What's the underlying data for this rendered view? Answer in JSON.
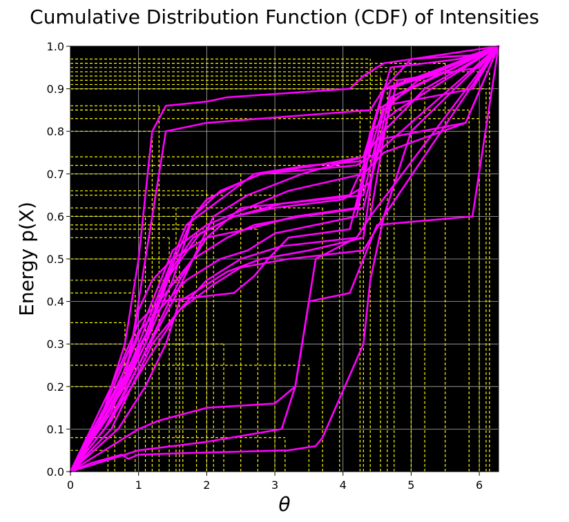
{
  "chart_data": {
    "type": "line",
    "title": "Cumulative Distribution Function (CDF) of Intensities",
    "xlabel": "θ",
    "ylabel": "Energy p(X)",
    "xlim": [
      0,
      6.283
    ],
    "ylim": [
      0,
      1
    ],
    "xticks": [
      0,
      1,
      2,
      3,
      4,
      5,
      6
    ],
    "yticks": [
      0.0,
      0.1,
      0.2,
      0.3,
      0.4,
      0.5,
      0.6,
      0.7,
      0.8,
      0.9,
      1.0
    ],
    "grid": true,
    "background_color": "#000000",
    "line_color": "#ff00ff",
    "guide_color": "#ffff00",
    "series": [
      {
        "x": [
          0,
          0.3,
          0.75,
          0.85,
          1.0,
          2.0,
          3.2,
          3.6,
          3.7,
          4.3,
          4.4,
          4.6,
          6.283
        ],
        "y": [
          0,
          0.02,
          0.04,
          0.03,
          0.04,
          0.045,
          0.05,
          0.06,
          0.08,
          0.3,
          0.45,
          0.6,
          1.0
        ]
      },
      {
        "x": [
          0,
          0.4,
          0.8,
          1.0,
          2.0,
          3.1,
          3.3,
          3.5,
          4.1,
          4.3,
          4.5,
          5.9,
          6.283
        ],
        "y": [
          0,
          0.02,
          0.04,
          0.05,
          0.07,
          0.1,
          0.2,
          0.4,
          0.42,
          0.5,
          0.58,
          0.6,
          1.0
        ]
      },
      {
        "x": [
          0,
          0.5,
          1.0,
          1.3,
          2.0,
          3.0,
          3.3,
          3.6,
          4.2,
          4.4,
          6.283
        ],
        "y": [
          0,
          0.05,
          0.1,
          0.12,
          0.15,
          0.16,
          0.2,
          0.5,
          0.55,
          0.6,
          1.0
        ]
      },
      {
        "x": [
          0,
          0.3,
          0.6,
          1.0,
          1.3,
          2.4,
          2.7,
          2.9,
          3.2,
          4.1,
          4.3,
          4.6,
          5.8,
          6.283
        ],
        "y": [
          0,
          0.1,
          0.2,
          0.35,
          0.4,
          0.42,
          0.46,
          0.5,
          0.55,
          0.57,
          0.7,
          0.75,
          0.82,
          1.0
        ]
      },
      {
        "x": [
          0,
          0.4,
          0.8,
          1.0,
          1.2,
          1.4,
          2.0,
          2.3,
          4.1,
          4.3,
          4.6,
          6.283
        ],
        "y": [
          0,
          0.1,
          0.3,
          0.5,
          0.8,
          0.86,
          0.87,
          0.88,
          0.9,
          0.93,
          0.96,
          1.0
        ]
      },
      {
        "x": [
          0,
          0.5,
          0.9,
          1.2,
          1.4,
          2.0,
          4.4,
          4.6,
          5.0,
          6.0,
          6.283
        ],
        "y": [
          0,
          0.15,
          0.3,
          0.6,
          0.8,
          0.82,
          0.85,
          0.9,
          0.97,
          0.98,
          1.0
        ]
      },
      {
        "x": [
          0,
          0.4,
          0.8,
          1.1,
          1.4,
          1.8,
          2.0,
          2.5,
          2.8,
          4.2,
          4.5,
          4.7,
          5.5,
          6.283
        ],
        "y": [
          0,
          0.1,
          0.2,
          0.3,
          0.45,
          0.6,
          0.64,
          0.68,
          0.7,
          0.72,
          0.75,
          0.9,
          0.95,
          1.0
        ]
      },
      {
        "x": [
          0,
          0.5,
          1.0,
          1.5,
          1.8,
          2.1,
          2.6,
          3.4,
          4.3,
          4.6,
          5.2,
          6.283
        ],
        "y": [
          0,
          0.1,
          0.25,
          0.4,
          0.5,
          0.6,
          0.65,
          0.7,
          0.74,
          0.8,
          0.9,
          1.0
        ]
      },
      {
        "x": [
          0,
          0.6,
          1.0,
          1.6,
          2.0,
          2.5,
          4.3,
          4.6,
          5.1,
          6.283
        ],
        "y": [
          0,
          0.12,
          0.25,
          0.45,
          0.55,
          0.62,
          0.65,
          0.85,
          0.92,
          1.0
        ]
      },
      {
        "x": [
          0,
          0.3,
          0.7,
          1.0,
          1.3,
          1.7,
          2.2,
          2.6,
          3.0,
          3.6,
          4.2,
          4.5,
          5.0,
          6.283
        ],
        "y": [
          0,
          0.08,
          0.2,
          0.33,
          0.38,
          0.45,
          0.5,
          0.52,
          0.56,
          0.58,
          0.6,
          0.85,
          0.9,
          1.0
        ]
      },
      {
        "x": [
          0,
          0.7,
          1.1,
          1.4,
          1.6,
          1.9,
          2.3,
          2.8,
          3.5,
          4.3,
          4.5,
          5.8,
          6.283
        ],
        "y": [
          0,
          0.1,
          0.2,
          0.3,
          0.4,
          0.43,
          0.47,
          0.5,
          0.52,
          0.55,
          0.78,
          0.82,
          1.0
        ]
      },
      {
        "x": [
          0,
          0.5,
          0.9,
          1.2,
          1.5,
          1.8,
          2.4,
          3.1,
          4.1,
          4.3,
          4.6,
          5.5,
          6.283
        ],
        "y": [
          0,
          0.15,
          0.25,
          0.35,
          0.48,
          0.55,
          0.6,
          0.63,
          0.65,
          0.72,
          0.9,
          0.94,
          1.0
        ]
      },
      {
        "x": [
          0,
          0.4,
          0.8,
          1.0,
          1.2,
          1.5,
          2.0,
          2.6,
          3.3,
          4.2,
          4.4,
          4.8,
          6.283
        ],
        "y": [
          0,
          0.1,
          0.22,
          0.38,
          0.45,
          0.5,
          0.55,
          0.57,
          0.6,
          0.62,
          0.8,
          0.85,
          1.0
        ]
      },
      {
        "x": [
          0,
          0.6,
          1.0,
          1.3,
          1.7,
          2.2,
          2.7,
          3.5,
          4.3,
          4.7,
          5.7,
          6.283
        ],
        "y": [
          0,
          0.14,
          0.3,
          0.42,
          0.58,
          0.64,
          0.7,
          0.72,
          0.73,
          0.95,
          0.97,
          1.0
        ]
      },
      {
        "x": [
          0,
          0.3,
          0.6,
          0.9,
          1.2,
          1.6,
          2.1,
          2.5,
          3.2,
          4.3,
          4.6,
          5.0,
          6.283
        ],
        "y": [
          0,
          0.05,
          0.1,
          0.2,
          0.3,
          0.38,
          0.44,
          0.48,
          0.5,
          0.52,
          0.6,
          0.8,
          1.0
        ]
      },
      {
        "x": [
          0,
          0.5,
          0.9,
          1.1,
          1.4,
          1.9,
          2.4,
          3.0,
          4.0,
          4.4,
          4.8,
          6.0,
          6.283
        ],
        "y": [
          0,
          0.12,
          0.26,
          0.32,
          0.45,
          0.56,
          0.6,
          0.62,
          0.64,
          0.68,
          0.92,
          0.95,
          1.0
        ]
      },
      {
        "x": [
          0,
          0.4,
          0.7,
          1.0,
          1.3,
          1.8,
          2.3,
          2.7,
          3.4,
          4.3,
          4.5,
          6.283
        ],
        "y": [
          0,
          0.1,
          0.18,
          0.28,
          0.4,
          0.5,
          0.55,
          0.58,
          0.6,
          0.62,
          0.75,
          1.0
        ]
      },
      {
        "x": [
          0,
          0.6,
          1.1,
          1.5,
          1.8,
          2.2,
          2.8,
          3.6,
          4.3,
          4.6,
          5.3,
          6.283
        ],
        "y": [
          0,
          0.15,
          0.3,
          0.45,
          0.6,
          0.66,
          0.7,
          0.72,
          0.74,
          0.9,
          0.94,
          1.0
        ]
      },
      {
        "x": [
          0,
          0.5,
          0.9,
          1.2,
          1.6,
          2.0,
          2.5,
          3.1,
          4.2,
          4.4,
          4.7,
          6.283
        ],
        "y": [
          0,
          0.1,
          0.2,
          0.28,
          0.38,
          0.45,
          0.5,
          0.53,
          0.55,
          0.6,
          0.88,
          1.0
        ]
      },
      {
        "x": [
          0,
          0.4,
          0.8,
          1.2,
          1.5,
          2.0,
          2.6,
          3.2,
          4.3,
          4.6,
          5.9,
          6.283
        ],
        "y": [
          0,
          0.11,
          0.24,
          0.4,
          0.52,
          0.58,
          0.62,
          0.66,
          0.7,
          0.86,
          0.9,
          1.0
        ]
      }
    ],
    "guides": [
      {
        "x": 0.55,
        "y": 0.05
      },
      {
        "x": 0.65,
        "y": 0.2
      },
      {
        "x": 0.8,
        "y": 0.35
      },
      {
        "x": 0.95,
        "y": 0.42
      },
      {
        "x": 1.1,
        "y": 0.6
      },
      {
        "x": 1.2,
        "y": 0.8
      },
      {
        "x": 1.3,
        "y": 0.86
      },
      {
        "x": 1.45,
        "y": 0.55
      },
      {
        "x": 1.55,
        "y": 0.62
      },
      {
        "x": 1.6,
        "y": 0.5
      },
      {
        "x": 1.65,
        "y": 0.45
      },
      {
        "x": 1.85,
        "y": 0.58
      },
      {
        "x": 2.0,
        "y": 0.66
      },
      {
        "x": 2.1,
        "y": 0.6
      },
      {
        "x": 2.25,
        "y": 0.3
      },
      {
        "x": 2.5,
        "y": 0.7
      },
      {
        "x": 2.75,
        "y": 0.57
      },
      {
        "x": 3.0,
        "y": 0.65
      },
      {
        "x": 3.15,
        "y": 0.08
      },
      {
        "x": 3.5,
        "y": 0.25
      },
      {
        "x": 3.7,
        "y": 0.62
      },
      {
        "x": 3.95,
        "y": 0.72
      },
      {
        "x": 4.25,
        "y": 0.85
      },
      {
        "x": 4.3,
        "y": 0.74
      },
      {
        "x": 4.4,
        "y": 0.97
      },
      {
        "x": 4.55,
        "y": 0.93
      },
      {
        "x": 4.65,
        "y": 0.91
      },
      {
        "x": 4.75,
        "y": 0.95
      },
      {
        "x": 5.0,
        "y": 0.9
      },
      {
        "x": 5.2,
        "y": 0.92
      },
      {
        "x": 5.5,
        "y": 0.96
      },
      {
        "x": 5.85,
        "y": 0.85
      },
      {
        "x": 6.0,
        "y": 0.83
      },
      {
        "x": 6.1,
        "y": 0.9
      },
      {
        "x": 6.15,
        "y": 0.94
      }
    ]
  }
}
